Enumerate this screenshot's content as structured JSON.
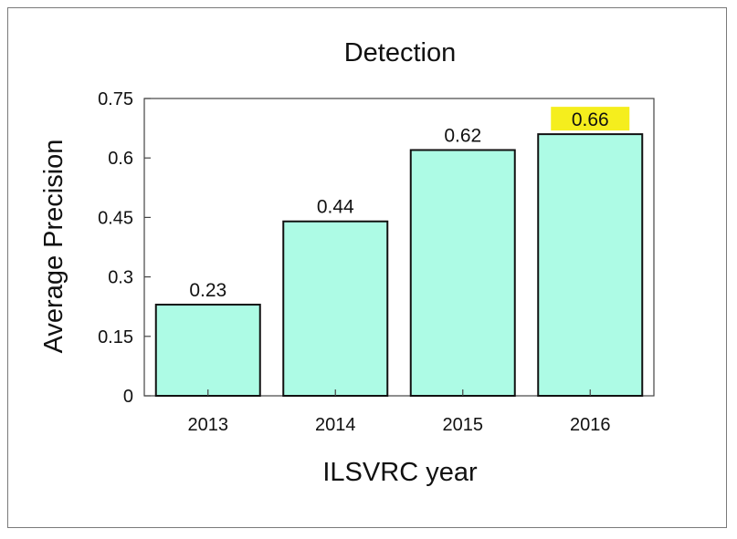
{
  "chart_data": {
    "type": "bar",
    "title": "Detection",
    "xlabel": "ILSVRC year",
    "ylabel": "Average Precision",
    "categories": [
      "2013",
      "2014",
      "2015",
      "2016"
    ],
    "values": [
      0.23,
      0.44,
      0.62,
      0.66
    ],
    "value_labels": [
      "0.23",
      "0.44",
      "0.62",
      "0.66"
    ],
    "ylim": [
      0,
      0.75
    ],
    "yticks": [
      0,
      0.15,
      0.3,
      0.45,
      0.6,
      0.75
    ],
    "ytick_labels": [
      "0",
      "0.15",
      "0.3",
      "0.45",
      "0.6",
      "0.75"
    ],
    "highlighted_category": "2016",
    "grid": false,
    "colors": {
      "bar": "#adfbe5",
      "bar_edge": "#111111",
      "highlight": "#f5ee1d"
    }
  }
}
